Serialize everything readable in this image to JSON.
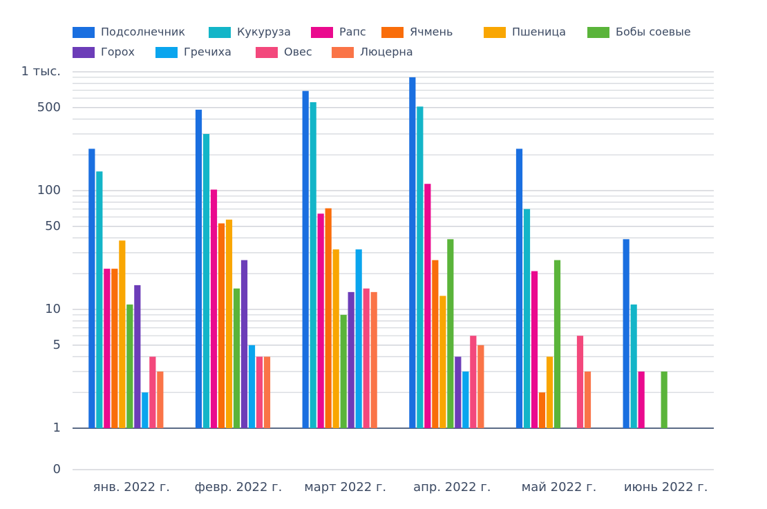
{
  "chart_data": {
    "type": "bar",
    "categories": [
      "янв. 2022 г.",
      "февр. 2022 г.",
      "март 2022 г.",
      "апр. 2022 г.",
      "май 2022 г.",
      "июнь 2022 г."
    ],
    "series": [
      {
        "name": "Подсолнечник",
        "color": "#1a6fe0",
        "values": [
          225,
          480,
          690,
          900,
          225,
          39
        ]
      },
      {
        "name": "Кукуруза",
        "color": "#13b5c8",
        "values": [
          145,
          300,
          555,
          510,
          70,
          11
        ]
      },
      {
        "name": "Рапс",
        "color": "#ea0a8e",
        "values": [
          22,
          102,
          64,
          114,
          21,
          3
        ]
      },
      {
        "name": "Ячмень",
        "color": "#f96d0a",
        "values": [
          22,
          53,
          71,
          26,
          2,
          null
        ]
      },
      {
        "name": "Пшеница",
        "color": "#f9a602",
        "values": [
          38,
          57,
          32,
          13,
          4,
          null
        ]
      },
      {
        "name": "Бобы соевые",
        "color": "#5ab43a",
        "values": [
          11,
          15,
          9,
          39,
          26,
          3
        ]
      },
      {
        "name": "Горох",
        "color": "#6c3db8",
        "values": [
          16,
          26,
          14,
          4,
          null,
          null
        ]
      },
      {
        "name": "Гречиха",
        "color": "#0aa5ee",
        "values": [
          2,
          5,
          32,
          3,
          null,
          null
        ]
      },
      {
        "name": "Овес",
        "color": "#f3487c",
        "values": [
          4,
          4,
          15,
          6,
          6,
          null
        ]
      },
      {
        "name": "Люцерна",
        "color": "#fa7447",
        "values": [
          3,
          4,
          14,
          5,
          3,
          null
        ]
      }
    ],
    "log_scale": true,
    "ylim": [
      1,
      1000
    ],
    "yticks": [
      0,
      1,
      5,
      10,
      50,
      100,
      500,
      {
        "value": 1000,
        "label": "1 тыс."
      }
    ],
    "minor_yticks": [
      2,
      3,
      4,
      6,
      7,
      8,
      9,
      20,
      30,
      40,
      60,
      70,
      80,
      90,
      200,
      300,
      400,
      600,
      700,
      800,
      900
    ],
    "grid": true,
    "legend": "top"
  }
}
